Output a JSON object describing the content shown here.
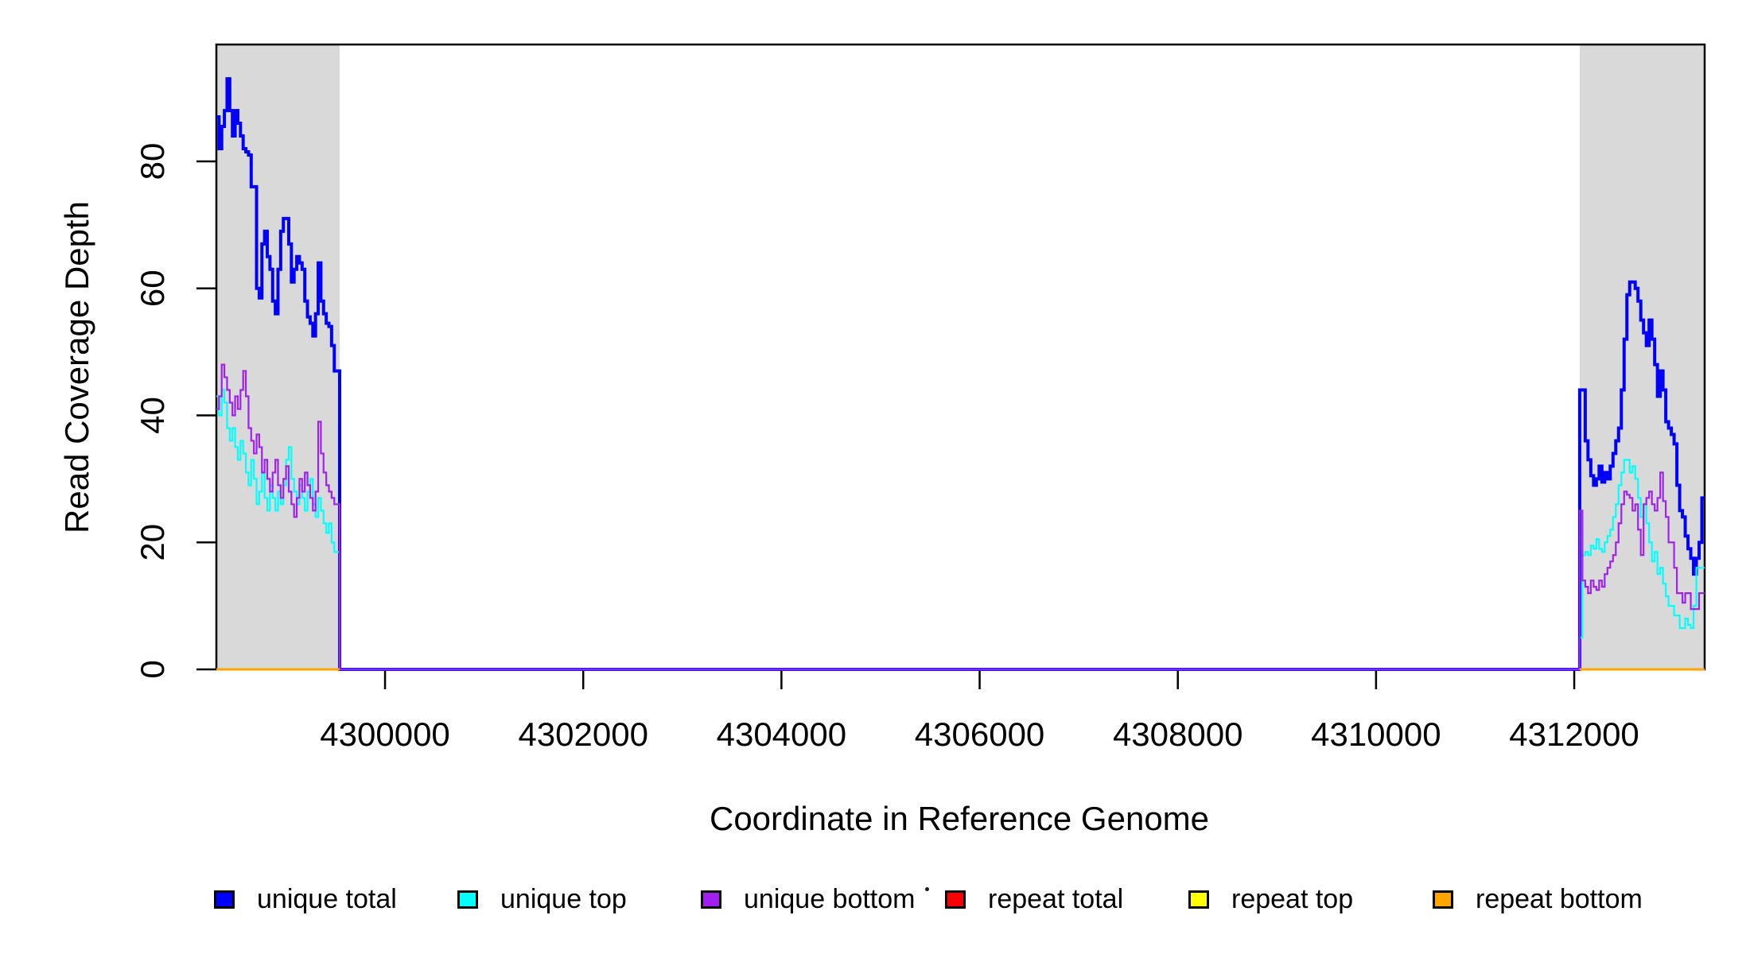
{
  "chart_data": {
    "type": "line",
    "subtype": "step-coverage",
    "title": "",
    "xlabel": "Coordinate in Reference Genome",
    "ylabel": "Read Coverage Depth",
    "xlim": [
      4298298,
      4313316
    ],
    "ylim": [
      0,
      98.4
    ],
    "x_ticks": [
      4300000,
      4302000,
      4304000,
      4306000,
      4308000,
      4310000,
      4312000
    ],
    "y_ticks": [
      0,
      20,
      40,
      60,
      80
    ],
    "grid": false,
    "axis_color": "#000000",
    "background_color": "#FFFFFF",
    "band_color": "#D9D9D9",
    "bands": [
      {
        "name": "left-shaded-region",
        "x0": 4298298,
        "x1": 4299542
      },
      {
        "name": "right-shaded-region",
        "x0": 4312055,
        "x1": 4313316
      }
    ],
    "series": [
      {
        "name": "unique total",
        "color": "#0000FF",
        "lw": 4,
        "segments": [
          {
            "x0": 4298298,
            "x1": 4299542,
            "values": [
              87,
              82,
              85.5,
              88,
              93,
              88,
              84,
              88,
              86,
              84,
              82,
              81.5,
              81,
              76,
              76,
              60,
              58.5,
              67,
              69,
              65,
              63,
              58,
              56,
              63,
              69,
              71,
              71,
              67,
              61,
              63,
              65,
              64,
              63,
              58,
              55.5,
              54.5,
              52.5,
              56,
              64,
              58,
              56,
              54.5,
              54,
              51,
              47,
              47
            ]
          },
          {
            "x0": 4299542,
            "x1": 4312055,
            "values": [
              0
            ]
          },
          {
            "x0": 4312055,
            "x1": 4313316,
            "values": [
              44,
              44,
              36,
              33,
              30.5,
              29,
              30,
              32,
              29.5,
              31,
              30,
              32,
              34,
              36,
              38,
              44,
              52,
              59,
              61,
              61,
              60,
              58,
              55,
              53,
              51,
              55,
              52,
              48,
              43,
              47,
              44,
              39,
              38,
              37,
              35.5,
              29,
              25,
              24,
              21,
              19,
              17.5,
              15,
              17.5,
              20,
              27
            ]
          }
        ]
      },
      {
        "name": "unique top",
        "color": "#00FFFF",
        "lw": 2.2,
        "segments": [
          {
            "x0": 4298298,
            "x1": 4299542,
            "values": [
              43,
              40,
              44,
              42,
              38,
              36,
              38,
              35,
              33,
              36,
              34,
              31,
              29,
              33,
              30,
              26,
              28,
              31,
              27,
              25,
              29,
              27,
              25,
              28,
              26,
              29,
              33,
              35,
              30,
              28,
              26,
              29,
              27,
              25,
              28,
              30,
              26,
              24,
              27,
              25,
              23,
              21.5,
              23,
              20,
              18.5,
              18.5
            ]
          },
          {
            "x0": 4299542,
            "x1": 4312055,
            "values": [
              0
            ]
          },
          {
            "x0": 4312055,
            "x1": 4313316,
            "values": [
              5,
              18,
              18.5,
              18,
              19.5,
              19,
              20.5,
              19,
              18.5,
              20,
              21,
              22,
              24,
              26,
              29,
              31,
              33,
              33,
              31,
              32,
              30,
              27,
              24,
              26,
              23,
              20,
              17,
              18.5,
              15,
              16,
              13.5,
              11.5,
              10,
              10,
              8.5,
              8.5,
              6.5,
              6.5,
              8,
              7,
              6.5,
              10,
              16,
              16,
              16
            ]
          }
        ]
      },
      {
        "name": "unique bottom",
        "color": "#A020F0",
        "lw": 2.2,
        "segments": [
          {
            "x0": 4298298,
            "x1": 4299542,
            "values": [
              41,
              43,
              48,
              46,
              44,
              42,
              40,
              43,
              41,
              44,
              47,
              43,
              38,
              36,
              34,
              37,
              35,
              31,
              33,
              30,
              28,
              31,
              33,
              29,
              27,
              30,
              32,
              28,
              26,
              24,
              27,
              30,
              28,
              31,
              29,
              27,
              25,
              28,
              39,
              34,
              31,
              29,
              28,
              27,
              26,
              26
            ]
          },
          {
            "x0": 4299542,
            "x1": 4312055,
            "values": [
              0
            ]
          },
          {
            "x0": 4312055,
            "x1": 4313316,
            "values": [
              25,
              14,
              13,
              12,
              14,
              13,
              12.5,
              14,
              13,
              15,
              16,
              17,
              18,
              20,
              23,
              26,
              28,
              27.5,
              27,
              25,
              26,
              22,
              18,
              26,
              27,
              28,
              26,
              25,
              27,
              31,
              26.5,
              24,
              20,
              20,
              16,
              12,
              12,
              10.5,
              12,
              12,
              9.5,
              9.5,
              9.5,
              12,
              12
            ]
          }
        ]
      },
      {
        "name": "repeat total",
        "color": "#FF0000",
        "lw": 2.2,
        "segments": [
          {
            "x0": 4298298,
            "x1": 4299542,
            "values": [
              0
            ]
          },
          {
            "x0": 4312055,
            "x1": 4313316,
            "values": [
              0
            ]
          }
        ]
      },
      {
        "name": "repeat top",
        "color": "#FFFF00",
        "lw": 2.2,
        "segments": [
          {
            "x0": 4298298,
            "x1": 4299542,
            "values": [
              0
            ]
          },
          {
            "x0": 4312055,
            "x1": 4313316,
            "values": [
              0
            ]
          }
        ]
      },
      {
        "name": "repeat bottom",
        "color": "#FFA500",
        "lw": 3,
        "segments": [
          {
            "x0": 4298298,
            "x1": 4299542,
            "values": [
              0
            ]
          },
          {
            "x0": 4312055,
            "x1": 4313316,
            "values": [
              0
            ]
          }
        ]
      }
    ],
    "legend": {
      "position": "bottom",
      "entries": [
        {
          "label": "unique total",
          "color": "#0000FF"
        },
        {
          "label": "unique top",
          "color": "#00FFFF"
        },
        {
          "label": "unique bottom",
          "color": "#A020F0"
        },
        {
          "label": "repeat total",
          "color": "#FF0000"
        },
        {
          "label": "repeat top",
          "color": "#FFFF00"
        },
        {
          "label": "repeat bottom",
          "color": "#FFA500"
        }
      ],
      "stray_dot": true
    }
  }
}
